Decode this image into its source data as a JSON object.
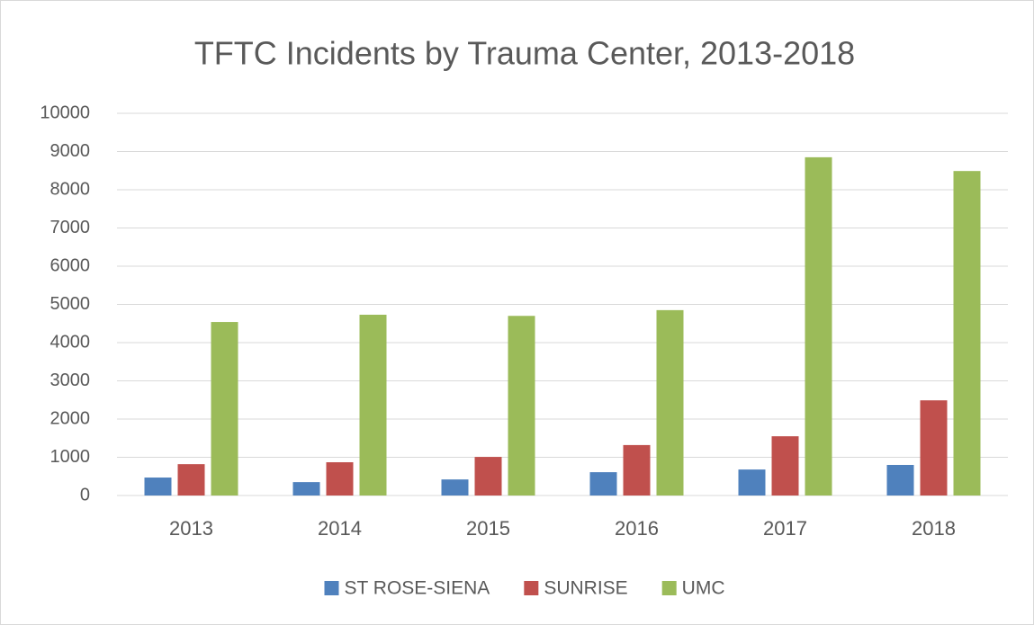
{
  "chart_data": {
    "type": "bar",
    "title": "TFTC Incidents by Trauma Center, 2013-2018",
    "categories": [
      "2013",
      "2014",
      "2015",
      "2016",
      "2017",
      "2018"
    ],
    "series": [
      {
        "name": "ST ROSE-SIENA",
        "color": "#4f81bd",
        "values": [
          470,
          350,
          420,
          610,
          680,
          800
        ]
      },
      {
        "name": "SUNRISE",
        "color": "#c0504d",
        "values": [
          820,
          870,
          1010,
          1320,
          1550,
          2490
        ]
      },
      {
        "name": "UMC",
        "color": "#9bbb59",
        "values": [
          4540,
          4730,
          4700,
          4850,
          8850,
          8490
        ]
      }
    ],
    "ylim": [
      0,
      10000
    ],
    "yticks": [
      0,
      1000,
      2000,
      3000,
      4000,
      5000,
      6000,
      7000,
      8000,
      9000,
      10000
    ],
    "grid": true,
    "legend": "bottom"
  }
}
